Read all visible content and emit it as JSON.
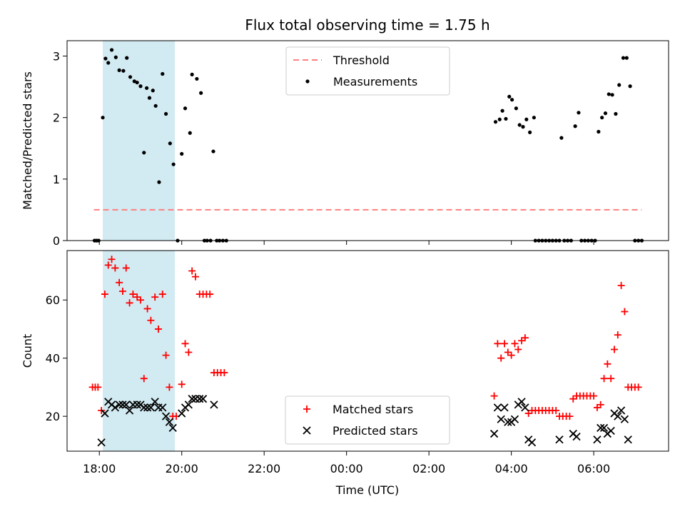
{
  "figure": {
    "title": "Flux total observing time = 1.75 h",
    "xlabel": "Time (UTC)"
  },
  "colors": {
    "shade": "#add8e6",
    "threshold": "#ff7f7f",
    "measurement": "#000000",
    "matched": "#ff0000",
    "predicted": "#000000"
  },
  "chart_data": [
    {
      "type": "scatter",
      "panel": "top",
      "ylabel": "Matched/Predicted stars",
      "xlim": [
        "17:13",
        "07:49"
      ],
      "ylim": [
        0,
        3.25
      ],
      "yticks": [
        0,
        1,
        2,
        3
      ],
      "xticks": [
        "18:00",
        "20:00",
        "22:00",
        "00:00",
        "02:00",
        "04:00",
        "06:00"
      ],
      "show_xtick_labels": false,
      "shaded_interval": [
        "18:05",
        "19:50"
      ],
      "legend": {
        "position": "top-center",
        "entries": [
          "Threshold",
          "Measurements"
        ]
      },
      "threshold": {
        "name": "Threshold",
        "y": 0.5,
        "x": [
          "17:52",
          "07:10"
        ]
      },
      "series": [
        {
          "name": "Measurements",
          "marker": "dot",
          "points": [
            [
              "17:53",
              0
            ],
            [
              "17:56",
              0
            ],
            [
              "17:59",
              0
            ],
            [
              "18:05",
              2.0
            ],
            [
              "18:09",
              2.96
            ],
            [
              "18:13",
              2.89
            ],
            [
              "18:18",
              3.1
            ],
            [
              "18:24",
              2.98
            ],
            [
              "18:29",
              2.77
            ],
            [
              "18:35",
              2.76
            ],
            [
              "18:40",
              2.97
            ],
            [
              "18:45",
              2.66
            ],
            [
              "18:51",
              2.59
            ],
            [
              "18:55",
              2.57
            ],
            [
              "19:00",
              2.51
            ],
            [
              "19:05",
              1.43
            ],
            [
              "19:09",
              2.48
            ],
            [
              "19:13",
              2.32
            ],
            [
              "19:18",
              2.44
            ],
            [
              "19:22",
              2.19
            ],
            [
              "19:27",
              0.95
            ],
            [
              "19:32",
              2.71
            ],
            [
              "19:37",
              2.06
            ],
            [
              "19:43",
              1.58
            ],
            [
              "19:48",
              1.24
            ],
            [
              "19:54",
              0
            ],
            [
              "20:00",
              1.41
            ],
            [
              "20:05",
              2.15
            ],
            [
              "20:12",
              1.75
            ],
            [
              "20:15",
              2.7
            ],
            [
              "20:22",
              2.63
            ],
            [
              "20:28",
              2.4
            ],
            [
              "20:33",
              0
            ],
            [
              "20:37",
              0
            ],
            [
              "20:42",
              0
            ],
            [
              "20:46",
              1.45
            ],
            [
              "20:51",
              0
            ],
            [
              "20:55",
              0
            ],
            [
              "21:00",
              0
            ],
            [
              "21:05",
              0
            ],
            [
              "03:37",
              1.93
            ],
            [
              "03:43",
              1.97
            ],
            [
              "03:47",
              2.11
            ],
            [
              "03:52",
              1.98
            ],
            [
              "03:57",
              2.34
            ],
            [
              "04:01",
              2.29
            ],
            [
              "04:07",
              2.15
            ],
            [
              "04:12",
              1.88
            ],
            [
              "04:17",
              1.85
            ],
            [
              "04:22",
              1.97
            ],
            [
              "04:27",
              1.76
            ],
            [
              "04:33",
              2.0
            ],
            [
              "04:35",
              0
            ],
            [
              "04:40",
              0
            ],
            [
              "04:45",
              0
            ],
            [
              "04:50",
              0
            ],
            [
              "04:55",
              0
            ],
            [
              "05:00",
              0
            ],
            [
              "05:05",
              0
            ],
            [
              "05:10",
              0
            ],
            [
              "05:13",
              1.67
            ],
            [
              "05:17",
              0
            ],
            [
              "05:22",
              0
            ],
            [
              "05:27",
              0
            ],
            [
              "05:33",
              1.86
            ],
            [
              "05:38",
              2.08
            ],
            [
              "05:42",
              0
            ],
            [
              "05:47",
              0
            ],
            [
              "05:52",
              0
            ],
            [
              "05:57",
              0
            ],
            [
              "06:02",
              0
            ],
            [
              "06:07",
              1.77
            ],
            [
              "06:12",
              2.0
            ],
            [
              "06:17",
              2.07
            ],
            [
              "06:22",
              2.38
            ],
            [
              "06:27",
              2.37
            ],
            [
              "06:32",
              2.06
            ],
            [
              "06:37",
              2.53
            ],
            [
              "06:43",
              2.97
            ],
            [
              "06:48",
              2.97
            ],
            [
              "06:53",
              2.51
            ],
            [
              "07:00",
              0
            ],
            [
              "07:05",
              0
            ],
            [
              "07:10",
              0
            ]
          ]
        }
      ]
    },
    {
      "type": "scatter",
      "panel": "bottom",
      "ylabel": "Count",
      "xlabel": "Time (UTC)",
      "xlim": [
        "17:13",
        "07:49"
      ],
      "ylim": [
        8,
        77
      ],
      "yticks": [
        20,
        40,
        60
      ],
      "xticks": [
        "18:00",
        "20:00",
        "22:00",
        "00:00",
        "02:00",
        "04:00",
        "06:00"
      ],
      "show_xtick_labels": true,
      "shaded_interval": [
        "18:05",
        "19:50"
      ],
      "legend": {
        "position": "bottom-center",
        "entries": [
          "Matched stars",
          "Predicted stars"
        ]
      },
      "series": [
        {
          "name": "Matched stars",
          "marker": "plus",
          "points": [
            [
              "17:50",
              30
            ],
            [
              "17:54",
              30
            ],
            [
              "17:58",
              30
            ],
            [
              "18:03",
              22
            ],
            [
              "18:08",
              62
            ],
            [
              "18:13",
              72
            ],
            [
              "18:18",
              74
            ],
            [
              "18:23",
              71
            ],
            [
              "18:29",
              66
            ],
            [
              "18:34",
              63
            ],
            [
              "18:39",
              71
            ],
            [
              "18:44",
              59
            ],
            [
              "18:49",
              62
            ],
            [
              "18:55",
              61
            ],
            [
              "19:00",
              60
            ],
            [
              "19:05",
              33
            ],
            [
              "19:10",
              57
            ],
            [
              "19:15",
              53
            ],
            [
              "19:21",
              61
            ],
            [
              "19:26",
              50
            ],
            [
              "19:32",
              62
            ],
            [
              "19:37",
              41
            ],
            [
              "19:42",
              30
            ],
            [
              "19:47",
              20
            ],
            [
              "19:52",
              20
            ],
            [
              "20:00",
              31
            ],
            [
              "20:05",
              45
            ],
            [
              "20:10",
              42
            ],
            [
              "20:15",
              70
            ],
            [
              "20:20",
              68
            ],
            [
              "20:26",
              62
            ],
            [
              "20:31",
              62
            ],
            [
              "20:36",
              62
            ],
            [
              "20:41",
              62
            ],
            [
              "20:47",
              35
            ],
            [
              "20:52",
              35
            ],
            [
              "20:57",
              35
            ],
            [
              "21:02",
              35
            ],
            [
              "03:35",
              27
            ],
            [
              "03:40",
              45
            ],
            [
              "03:45",
              40
            ],
            [
              "03:50",
              45
            ],
            [
              "03:55",
              42
            ],
            [
              "04:00",
              41
            ],
            [
              "04:05",
              45
            ],
            [
              "04:10",
              43
            ],
            [
              "04:15",
              46
            ],
            [
              "04:20",
              47
            ],
            [
              "04:25",
              21
            ],
            [
              "04:30",
              22
            ],
            [
              "04:35",
              22
            ],
            [
              "04:40",
              22
            ],
            [
              "04:45",
              22
            ],
            [
              "04:50",
              22
            ],
            [
              "04:55",
              22
            ],
            [
              "05:00",
              22
            ],
            [
              "05:05",
              22
            ],
            [
              "05:10",
              20
            ],
            [
              "05:15",
              20
            ],
            [
              "05:20",
              20
            ],
            [
              "05:25",
              20
            ],
            [
              "05:30",
              26
            ],
            [
              "05:35",
              27
            ],
            [
              "05:40",
              27
            ],
            [
              "05:45",
              27
            ],
            [
              "05:50",
              27
            ],
            [
              "05:55",
              27
            ],
            [
              "06:00",
              27
            ],
            [
              "06:05",
              23
            ],
            [
              "06:10",
              24
            ],
            [
              "06:15",
              33
            ],
            [
              "06:20",
              38
            ],
            [
              "06:25",
              33
            ],
            [
              "06:30",
              43
            ],
            [
              "06:35",
              48
            ],
            [
              "06:40",
              65
            ],
            [
              "06:45",
              56
            ],
            [
              "06:50",
              30
            ],
            [
              "06:55",
              30
            ],
            [
              "07:00",
              30
            ],
            [
              "07:05",
              30
            ]
          ]
        },
        {
          "name": "Predicted stars",
          "marker": "x",
          "points": [
            [
              "18:03",
              11
            ],
            [
              "18:08",
              21
            ],
            [
              "18:13",
              25
            ],
            [
              "18:18",
              24
            ],
            [
              "18:23",
              23
            ],
            [
              "18:29",
              24
            ],
            [
              "18:34",
              24
            ],
            [
              "18:39",
              24
            ],
            [
              "18:44",
              22
            ],
            [
              "18:49",
              24
            ],
            [
              "18:55",
              24
            ],
            [
              "19:00",
              24
            ],
            [
              "19:05",
              23
            ],
            [
              "19:10",
              23
            ],
            [
              "19:15",
              23
            ],
            [
              "19:21",
              25
            ],
            [
              "19:26",
              23
            ],
            [
              "19:32",
              23
            ],
            [
              "19:37",
              20
            ],
            [
              "19:42",
              18
            ],
            [
              "19:47",
              16
            ],
            [
              "20:00",
              21
            ],
            [
              "20:05",
              23
            ],
            [
              "20:10",
              24
            ],
            [
              "20:15",
              26
            ],
            [
              "20:20",
              26
            ],
            [
              "20:26",
              26
            ],
            [
              "20:31",
              26
            ],
            [
              "20:47",
              24
            ],
            [
              "03:35",
              14
            ],
            [
              "03:40",
              23
            ],
            [
              "03:45",
              19
            ],
            [
              "03:50",
              23
            ],
            [
              "03:55",
              18
            ],
            [
              "04:00",
              18
            ],
            [
              "04:05",
              19
            ],
            [
              "04:10",
              24
            ],
            [
              "04:15",
              25
            ],
            [
              "04:20",
              23
            ],
            [
              "04:25",
              12
            ],
            [
              "04:30",
              11
            ],
            [
              "05:10",
              12
            ],
            [
              "05:30",
              14
            ],
            [
              "05:35",
              13
            ],
            [
              "06:05",
              12
            ],
            [
              "06:10",
              16
            ],
            [
              "06:15",
              16
            ],
            [
              "06:20",
              14
            ],
            [
              "06:25",
              15
            ],
            [
              "06:30",
              21
            ],
            [
              "06:35",
              20
            ],
            [
              "06:40",
              22
            ],
            [
              "06:45",
              19
            ],
            [
              "06:50",
              12
            ]
          ]
        }
      ]
    }
  ]
}
